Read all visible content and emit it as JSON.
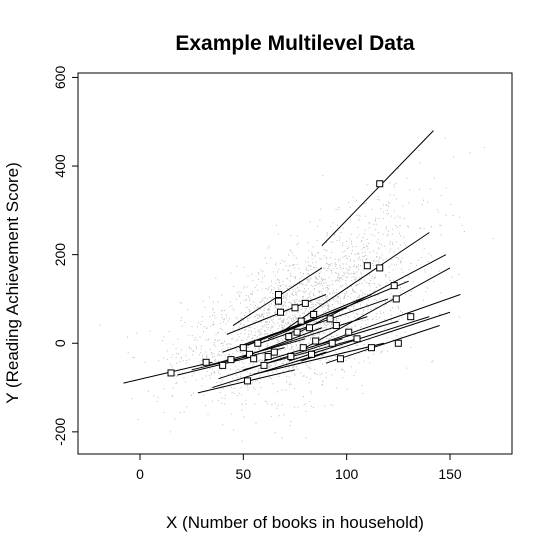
{
  "chart_data": {
    "type": "scatter",
    "title": "Example Multilevel Data",
    "xlabel": "X (Number of books in household)",
    "ylabel": "Y (Reading Achievement Score)",
    "xlim": [
      -30,
      180
    ],
    "ylim": [
      -250,
      610
    ],
    "x_ticks": [
      "0",
      "50",
      "100",
      "150"
    ],
    "y_ticks": [
      "-200",
      "0",
      "200",
      "400",
      "600"
    ],
    "grid": false,
    "legend": "none",
    "point_color": "#bdbdbd",
    "line_color": "#000000",
    "series": [
      {
        "marker": "square",
        "values": [
          {
            "x": 15,
            "y": -67
          },
          {
            "x": 32,
            "y": -43
          },
          {
            "x": 40,
            "y": -50
          },
          {
            "x": 44,
            "y": -37
          },
          {
            "x": 50,
            "y": -10
          },
          {
            "x": 52,
            "y": -85
          },
          {
            "x": 53,
            "y": -25
          },
          {
            "x": 55,
            "y": -35
          },
          {
            "x": 57,
            "y": 0
          },
          {
            "x": 60,
            "y": -50
          },
          {
            "x": 62,
            "y": -30
          },
          {
            "x": 65,
            "y": -20
          },
          {
            "x": 67,
            "y": 110
          },
          {
            "x": 67,
            "y": 95
          },
          {
            "x": 68,
            "y": 70
          },
          {
            "x": 72,
            "y": 15
          },
          {
            "x": 73,
            "y": -30
          },
          {
            "x": 75,
            "y": 80
          },
          {
            "x": 76,
            "y": 25
          },
          {
            "x": 78,
            "y": 50
          },
          {
            "x": 79,
            "y": -10
          },
          {
            "x": 80,
            "y": 90
          },
          {
            "x": 82,
            "y": 35
          },
          {
            "x": 83,
            "y": -25
          },
          {
            "x": 84,
            "y": 65
          },
          {
            "x": 85,
            "y": 5
          },
          {
            "x": 92,
            "y": 55
          },
          {
            "x": 93,
            "y": 0
          },
          {
            "x": 95,
            "y": 40
          },
          {
            "x": 97,
            "y": -35
          },
          {
            "x": 101,
            "y": 25
          },
          {
            "x": 105,
            "y": 10
          },
          {
            "x": 110,
            "y": 175
          },
          {
            "x": 112,
            "y": -10
          },
          {
            "x": 116,
            "y": 170
          },
          {
            "x": 116,
            "y": 360
          },
          {
            "x": 123,
            "y": 130
          },
          {
            "x": 124,
            "y": 100
          },
          {
            "x": 125,
            "y": 0
          },
          {
            "x": 131,
            "y": 60
          }
        ]
      }
    ],
    "fit_lines": [
      {
        "x": [
          -8,
          35
        ],
        "y": [
          -90,
          -43
        ]
      },
      {
        "x": [
          18,
          55
        ],
        "y": [
          -72,
          -30
        ]
      },
      {
        "x": [
          25,
          70
        ],
        "y": [
          -60,
          -10
        ]
      },
      {
        "x": [
          28,
          75
        ],
        "y": [
          -112,
          -60
        ]
      },
      {
        "x": [
          33,
          80
        ],
        "y": [
          -50,
          10
        ]
      },
      {
        "x": [
          35,
          90
        ],
        "y": [
          -100,
          -20
        ]
      },
      {
        "x": [
          38,
          98
        ],
        "y": [
          -80,
          10
        ]
      },
      {
        "x": [
          40,
          88
        ],
        "y": [
          -20,
          60
        ]
      },
      {
        "x": [
          42,
          90
        ],
        "y": [
          20,
          110
        ]
      },
      {
        "x": [
          45,
          88
        ],
        "y": [
          40,
          170
        ]
      },
      {
        "x": [
          45,
          88
        ],
        "y": [
          -40,
          35
        ]
      },
      {
        "x": [
          48,
          100
        ],
        "y": [
          -10,
          80
        ]
      },
      {
        "x": [
          50,
          105
        ],
        "y": [
          -60,
          10
        ]
      },
      {
        "x": [
          50,
          110
        ],
        "y": [
          -30,
          60
        ]
      },
      {
        "x": [
          52,
          112
        ],
        "y": [
          -5,
          110
        ]
      },
      {
        "x": [
          55,
          118
        ],
        "y": [
          -70,
          0
        ]
      },
      {
        "x": [
          58,
          120
        ],
        "y": [
          0,
          100
        ]
      },
      {
        "x": [
          60,
          125
        ],
        "y": [
          -40,
          50
        ]
      },
      {
        "x": [
          62,
          130
        ],
        "y": [
          10,
          140
        ]
      },
      {
        "x": [
          70,
          140
        ],
        "y": [
          30,
          250
        ]
      },
      {
        "x": [
          72,
          140
        ],
        "y": [
          -40,
          60
        ]
      },
      {
        "x": [
          75,
          148
        ],
        "y": [
          20,
          200
        ]
      },
      {
        "x": [
          78,
          150
        ],
        "y": [
          -40,
          70
        ]
      },
      {
        "x": [
          80,
          150
        ],
        "y": [
          -10,
          170
        ]
      },
      {
        "x": [
          85,
          155
        ],
        "y": [
          -5,
          110
        ]
      },
      {
        "x": [
          88,
          142
        ],
        "y": [
          220,
          480
        ]
      },
      {
        "x": [
          90,
          145
        ],
        "y": [
          -45,
          40
        ]
      }
    ]
  }
}
